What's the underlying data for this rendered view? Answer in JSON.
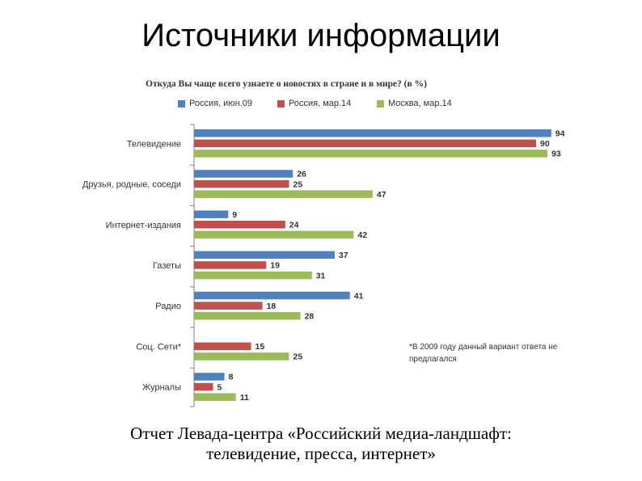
{
  "slide": {
    "title": "Источники информации",
    "caption_line1": "Отчет Левада-центра «Российский медиа-ландшафт:",
    "caption_line2": "телевидение, пресса, интернет»"
  },
  "chart_data": {
    "type": "bar",
    "orientation": "horizontal",
    "title": "Откуда Вы чаще всего узнаете о новостях в стране и в мире? (в %)",
    "categories": [
      "Телевидение",
      "Друзья, родные, соседи",
      "Интернет-издания",
      "Газеты",
      "Радио",
      "Соц. Сети*",
      "Журналы"
    ],
    "series": [
      {
        "name": "Россия, июн.09",
        "color": "#4f81bd",
        "values": [
          94,
          26,
          9,
          37,
          41,
          null,
          8
        ]
      },
      {
        "name": "Россия, мар.14",
        "color": "#c0504d",
        "values": [
          90,
          25,
          24,
          19,
          18,
          15,
          5
        ]
      },
      {
        "name": "Москва, мар.14",
        "color": "#9bbb59",
        "values": [
          93,
          47,
          42,
          31,
          28,
          25,
          11
        ]
      }
    ],
    "xlim": [
      0,
      100
    ],
    "legend_position": "top",
    "grid": false,
    "data_labels": true,
    "footnote": "*В 2009 году данный вариант ответа не предлагался"
  }
}
